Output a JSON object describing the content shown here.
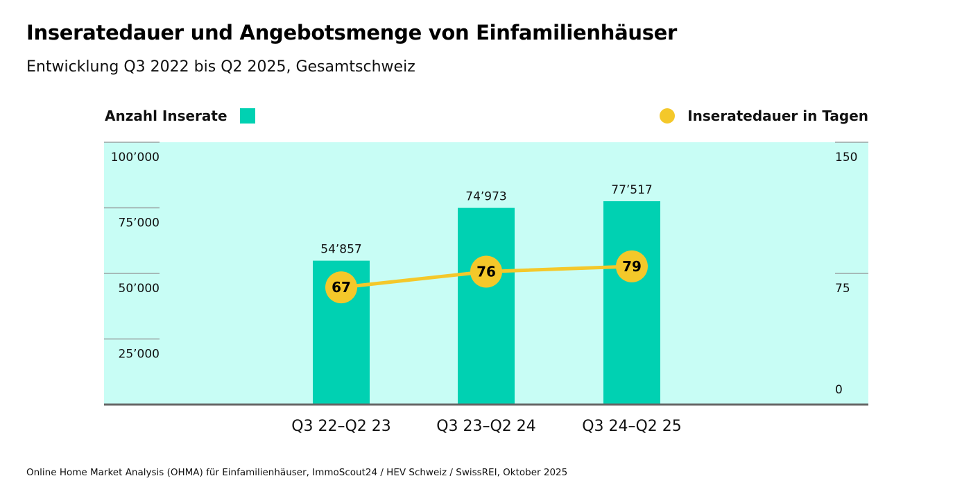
{
  "title": "Inseratedauer und Angebotsmenge von Einfamilienhäuser",
  "subtitle": "Entwicklung Q3 2022 bis Q2 2025, Gesamtschweiz",
  "footer": "Online Home Market Analysis (OHMA) für Einfamilienhäuser, ImmoScout24 / HEV Schweiz / SwissREI, Oktober 2025",
  "colors": {
    "panel": "#C8FDF5",
    "bar": "#00D1B2",
    "line": "#F4C82A",
    "grid": "#9aa3a3",
    "baseline": "#666666",
    "text": "#111111"
  },
  "chart_data": {
    "type": "bar",
    "title": "Inseratedauer und Angebotsmenge von Einfamilienhäuser",
    "subtitle": "Entwicklung Q3 2022 bis Q2 2025, Gesamtschweiz",
    "categories": [
      "Q3 22–Q2 23",
      "Q3 23–Q2 24",
      "Q3 24–Q2 25"
    ],
    "series": [
      {
        "name": "Anzahl Inserate",
        "type": "bar",
        "axis": "left",
        "values": [
          54857,
          74973,
          77517
        ],
        "labels": [
          "54’857",
          "74’973",
          "77’517"
        ]
      },
      {
        "name": "Inseratedauer in Tagen",
        "type": "line",
        "axis": "right",
        "values": [
          67,
          76,
          79
        ],
        "labels": [
          "67",
          "76",
          "79"
        ]
      }
    ],
    "left_axis": {
      "label": "Anzahl Inserate",
      "ylim": [
        0,
        100000
      ],
      "ticks": [
        100000,
        75000,
        50000,
        25000
      ],
      "tick_labels": [
        "100’000",
        "75’000",
        "50’000",
        "25’000"
      ]
    },
    "right_axis": {
      "label": "Inseratedauer in Tagen",
      "ylim": [
        0,
        150
      ],
      "ticks": [
        150,
        75,
        0
      ],
      "tick_labels": [
        "150",
        "75",
        "0"
      ]
    },
    "legend": [
      {
        "label": "Anzahl Inserate",
        "marker": "square",
        "position": "top-left"
      },
      {
        "label": "Inseratedauer in Tagen",
        "marker": "circle",
        "position": "top-right"
      }
    ],
    "xlabel": "",
    "grid": false
  }
}
